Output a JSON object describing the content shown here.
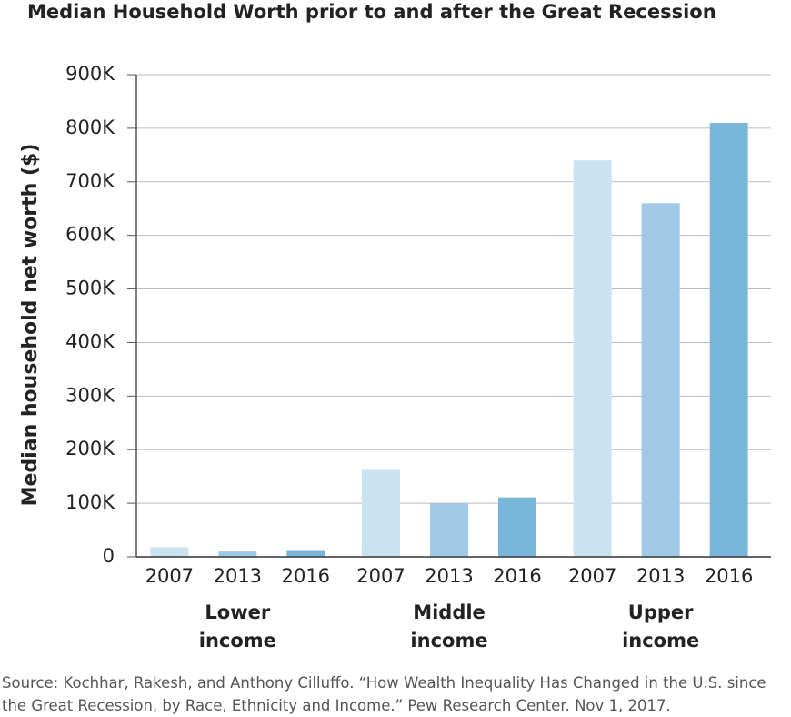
{
  "chart_data": {
    "type": "bar",
    "title": "Median Household Worth prior to and after the Great Recession",
    "y_label": "Median household net worth ($)",
    "source": "Source: Kochhar, Rakesh, and Anthony Cilluffo. “How Wealth Inequality Has Changed in the U.S. since the Great Recession, by Race, Ethnicity and Income.” Pew Research Center. Nov 1, 2017.",
    "categories": [
      "Lower income",
      "Middle income",
      "Upper income"
    ],
    "series": [
      {
        "name": "2007",
        "color": "#c9e3f1",
        "values": [
          18000,
          164000,
          740000
        ]
      },
      {
        "name": "2013",
        "color": "#a0c9e6",
        "values": [
          10000,
          100000,
          660000
        ]
      },
      {
        "name": "2016",
        "color": "#7ab5dc",
        "values": [
          11000,
          111000,
          810000
        ]
      }
    ],
    "ylim": [
      0,
      900000
    ],
    "yticks": [
      0,
      {
        "value": 100000,
        "label": "100K"
      },
      {
        "value": 200000,
        "label": "200K"
      },
      {
        "value": 300000,
        "label": "300K"
      },
      {
        "value": 400000,
        "label": "400K"
      },
      {
        "value": 500000,
        "label": "500K"
      },
      {
        "value": 600000,
        "label": "600K"
      },
      {
        "value": 700000,
        "label": "700K"
      },
      {
        "value": 800000,
        "label": "800K"
      },
      {
        "value": 900000,
        "label": "900K"
      }
    ],
    "grid": true
  }
}
